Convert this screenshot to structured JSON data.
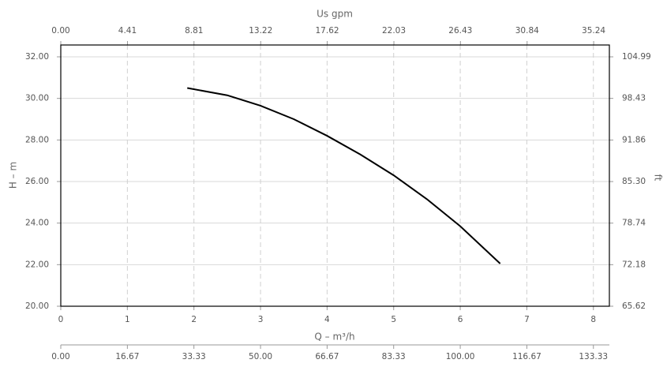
{
  "chart_data": {
    "type": "line",
    "xlabel": "Q – m³/h",
    "ylabel": "H – m",
    "x2label": "Us gpm",
    "y2label": "ft",
    "x": [
      1.9,
      2.5,
      3,
      3.5,
      4,
      4.5,
      5,
      5.5,
      6,
      6.6
    ],
    "series": [
      {
        "color": "#000000",
        "values": [
          30.5,
          30.15,
          29.65,
          29.0,
          28.2,
          27.3,
          26.3,
          25.15,
          23.85,
          22.05
        ]
      }
    ],
    "xlim": [
      0,
      8.24
    ],
    "xticks": [
      0,
      1,
      2,
      3,
      4,
      5,
      6,
      7,
      8
    ],
    "ylim": [
      20,
      32.57
    ],
    "yticks": [
      {
        "value": 20,
        "label": "20.00"
      },
      {
        "value": 22,
        "label": "22.00"
      },
      {
        "value": 24,
        "label": "24.00"
      },
      {
        "value": 26,
        "label": "26.00"
      },
      {
        "value": 28,
        "label": "28.00"
      },
      {
        "value": 30,
        "label": "30.00"
      },
      {
        "value": 32,
        "label": "32.00"
      }
    ],
    "x2lim": [
      0,
      36.28
    ],
    "x2ticks": [
      {
        "value": 0,
        "label": "0.00"
      },
      4.41,
      8.81,
      13.22,
      17.62,
      22.03,
      26.43,
      30.84,
      35.24
    ],
    "x3lim": [
      0,
      137.33
    ],
    "x3ticks": [
      {
        "value": 0,
        "label": "0.00"
      },
      16.67,
      33.33,
      {
        "value": 50,
        "label": "50.00"
      },
      66.67,
      83.33,
      {
        "value": 100,
        "label": "100.00"
      },
      116.67,
      133.33
    ],
    "y2lim": [
      65.62,
      106.86
    ],
    "y2ticks": [
      65.62,
      72.18,
      78.74,
      {
        "value": 85.3,
        "label": "85.30"
      },
      91.86,
      98.43,
      104.99
    ],
    "grid": true
  }
}
